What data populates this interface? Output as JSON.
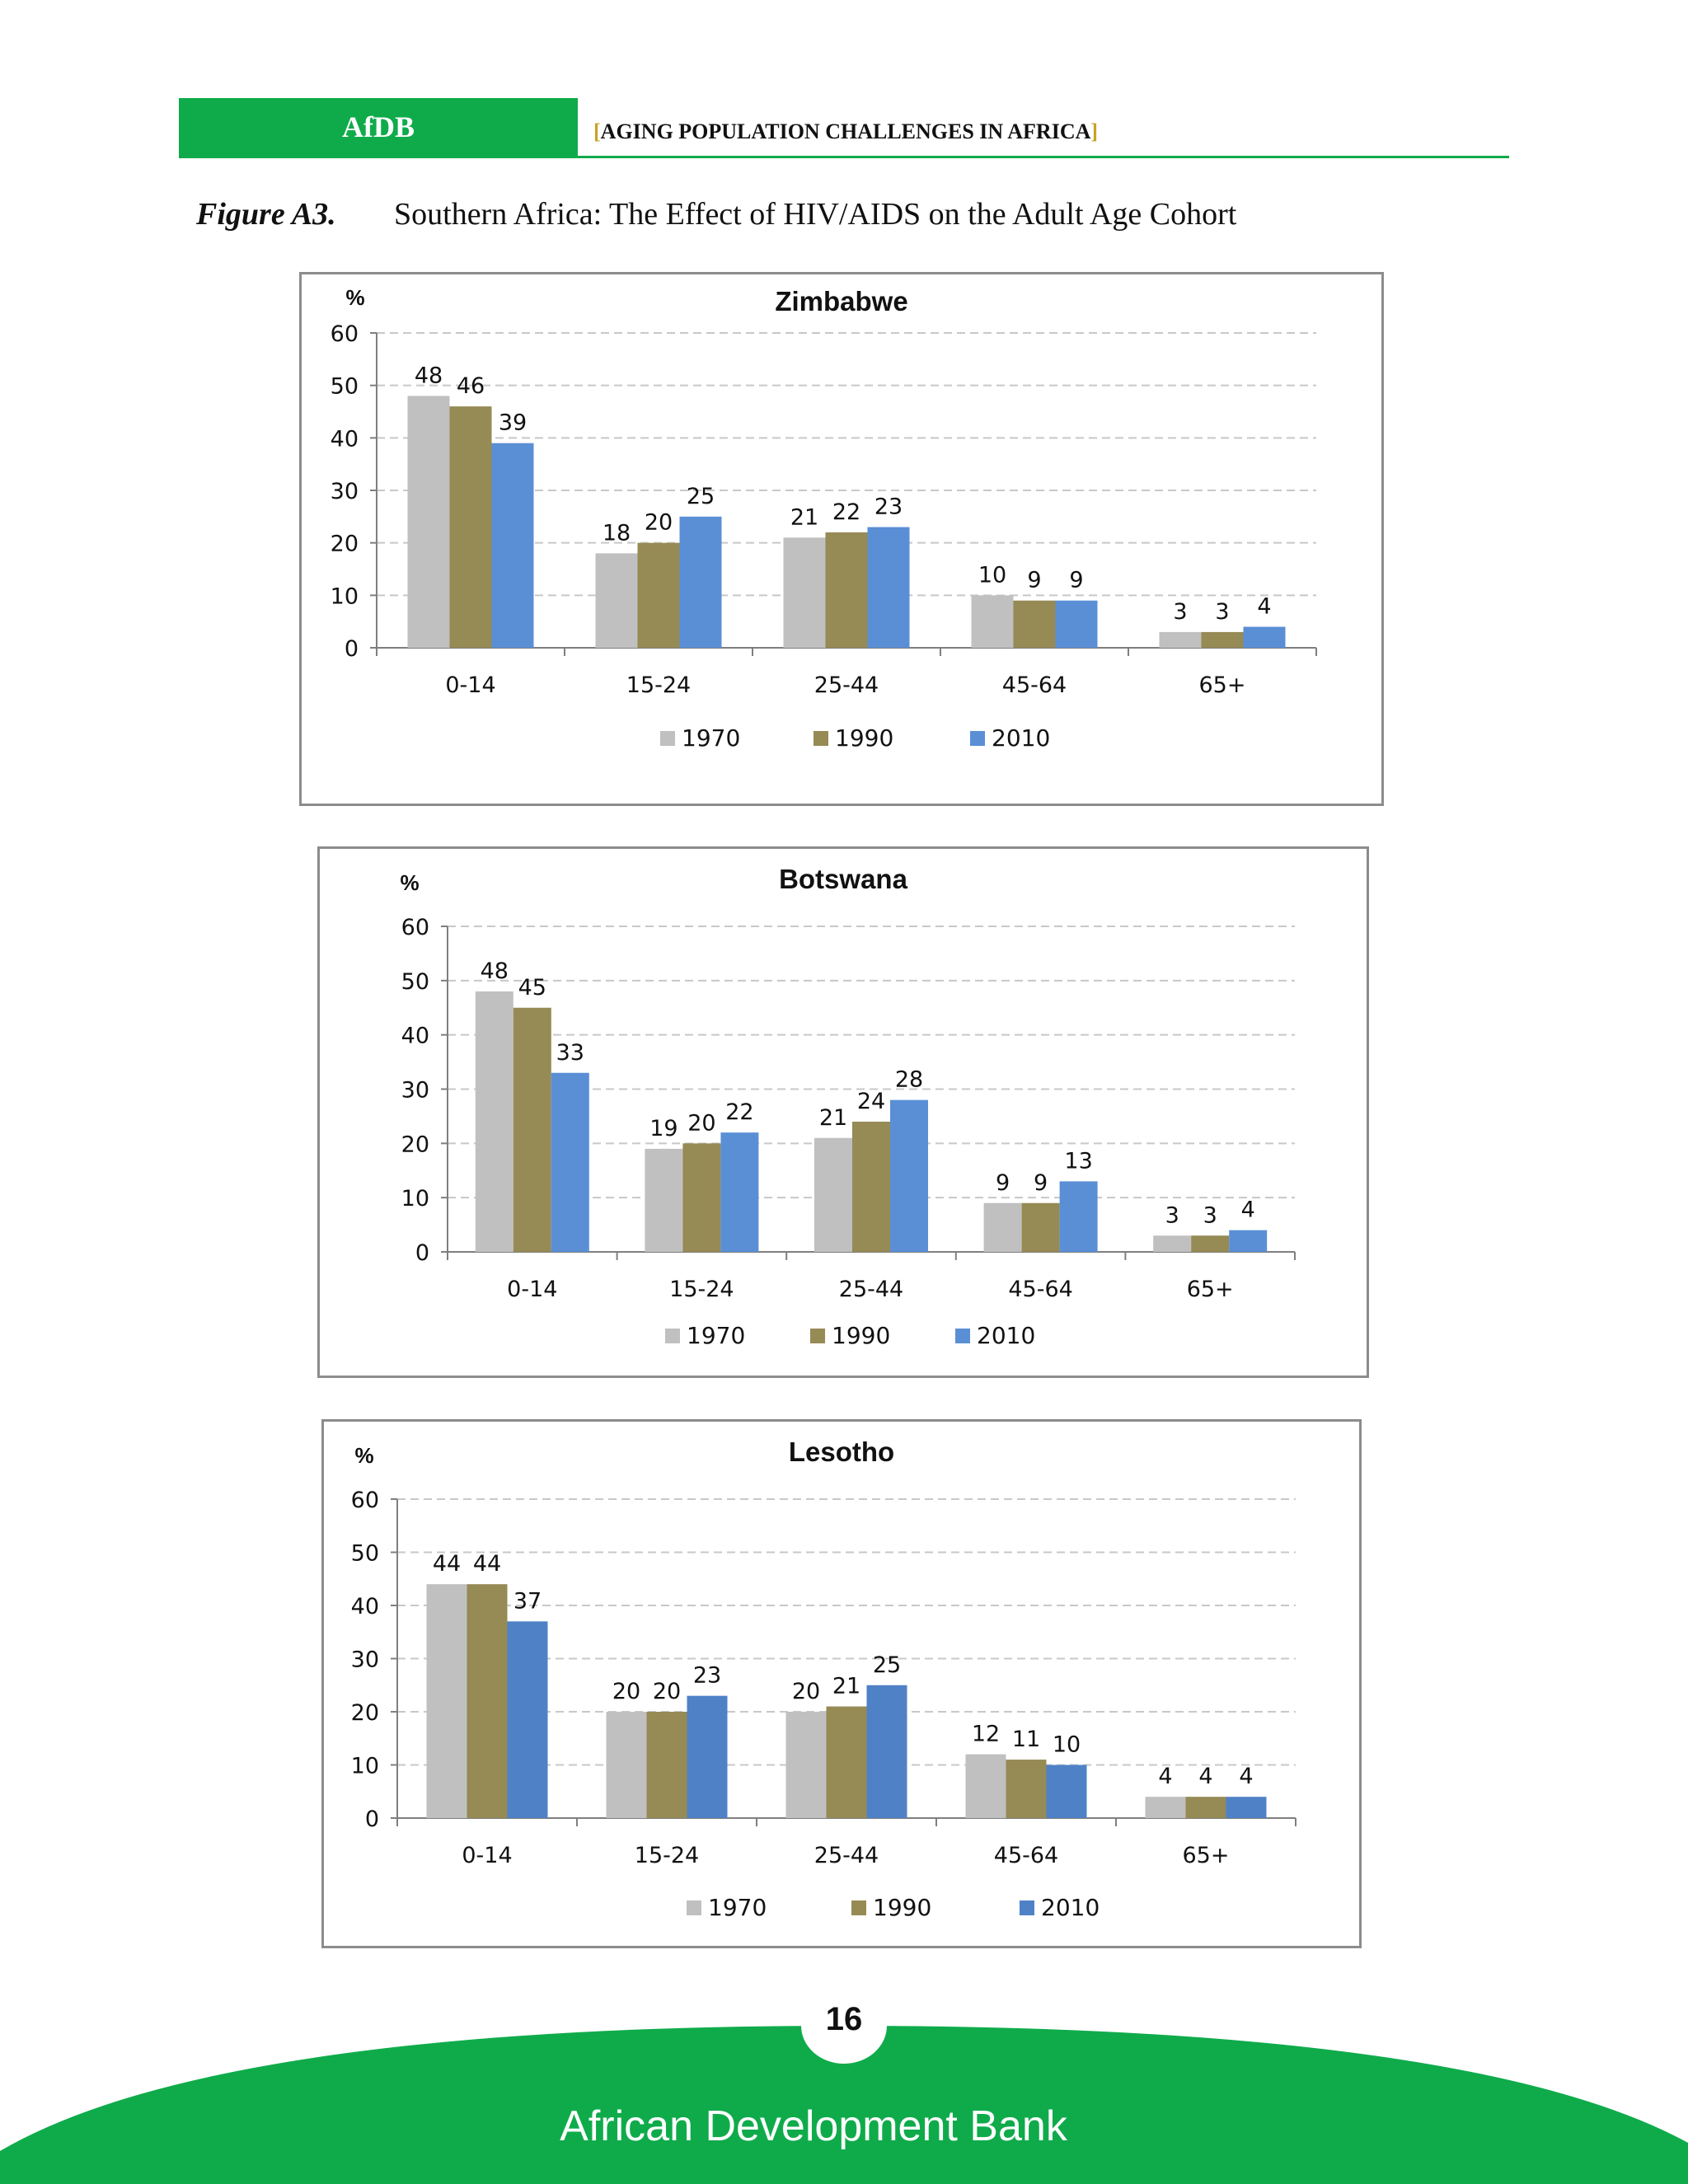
{
  "header": {
    "logo": "AfDB",
    "title_open": "[",
    "title": "AGING POPULATION CHALLENGES IN AFRICA",
    "title_close": "]"
  },
  "figure": {
    "label": "Figure A3.",
    "title": "Southern Africa: The Effect of HIV/AIDS on the Adult Age Cohort"
  },
  "colors": {
    "brand_green": "#0fab4b",
    "s1970": "#c0c0c0",
    "s1990": "#968a55",
    "s2010": "#5a8fd6"
  },
  "chart_data": [
    {
      "type": "bar",
      "title": "Zimbabwe",
      "ylabel": "%",
      "ylim": [
        0,
        60
      ],
      "yticks": [
        0,
        10,
        20,
        30,
        40,
        50,
        60
      ],
      "categories": [
        "0-14",
        "15-24",
        "25-44",
        "45-64",
        "65+"
      ],
      "series": [
        {
          "name": "1970",
          "color": "#c0c0c0",
          "values": [
            48,
            18,
            21,
            10,
            3
          ]
        },
        {
          "name": "1990",
          "color": "#968a55",
          "values": [
            46,
            20,
            22,
            9,
            3
          ]
        },
        {
          "name": "2010",
          "color": "#5a8fd6",
          "values": [
            39,
            25,
            23,
            9,
            4
          ]
        }
      ],
      "grid": true,
      "legend": "bottom"
    },
    {
      "type": "bar",
      "title": "Botswana",
      "ylabel": "%",
      "ylim": [
        0,
        60
      ],
      "yticks": [
        0,
        10,
        20,
        30,
        40,
        50,
        60
      ],
      "categories": [
        "0-14",
        "15-24",
        "25-44",
        "45-64",
        "65+"
      ],
      "series": [
        {
          "name": "1970",
          "color": "#c0c0c0",
          "values": [
            48,
            19,
            21,
            9,
            3
          ]
        },
        {
          "name": "1990",
          "color": "#968a55",
          "values": [
            45,
            20,
            24,
            9,
            3
          ]
        },
        {
          "name": "2010",
          "color": "#5a8fd6",
          "values": [
            33,
            22,
            28,
            13,
            4
          ]
        }
      ],
      "grid": true,
      "legend": "bottom"
    },
    {
      "type": "bar",
      "title": "Lesotho",
      "ylabel": "%",
      "ylim": [
        0,
        60
      ],
      "yticks": [
        0,
        10,
        20,
        30,
        40,
        50,
        60
      ],
      "categories": [
        "0-14",
        "15-24",
        "25-44",
        "45-64",
        "65+"
      ],
      "series": [
        {
          "name": "1970",
          "color": "#c0c0c0",
          "values": [
            44,
            20,
            20,
            12,
            4
          ]
        },
        {
          "name": "1990",
          "color": "#968a55",
          "values": [
            44,
            20,
            21,
            11,
            4
          ]
        },
        {
          "name": "2010",
          "color": "#4f81c7",
          "values": [
            37,
            23,
            25,
            10,
            4
          ]
        }
      ],
      "grid": true,
      "legend": "bottom"
    }
  ],
  "footer": {
    "page_number": "16",
    "organization": "African Development Bank"
  }
}
